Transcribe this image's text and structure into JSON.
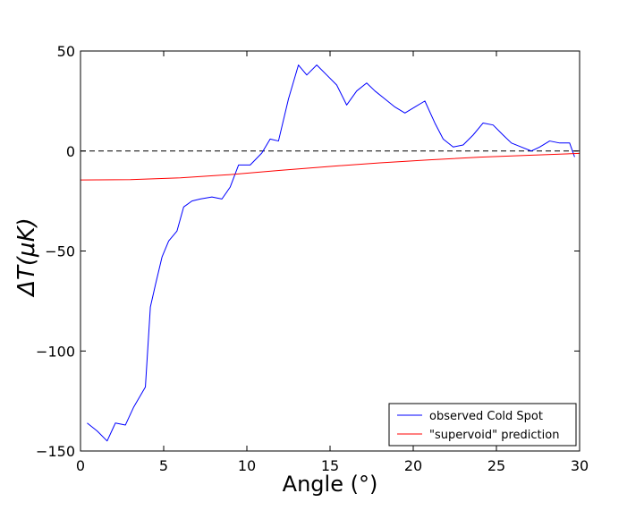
{
  "chart_data": {
    "type": "line",
    "title": "",
    "xlabel": "Angle (°)",
    "ylabel": "ΔT(μK)",
    "xlim": [
      0,
      30
    ],
    "ylim": [
      -150,
      50
    ],
    "x_ticks": [
      0,
      5,
      10,
      15,
      20,
      25,
      30
    ],
    "y_ticks": [
      -150,
      -100,
      -50,
      0,
      50
    ],
    "x_tick_labels": [
      "0",
      "5",
      "10",
      "15",
      "20",
      "25",
      "30"
    ],
    "y_tick_labels": [
      "−150",
      "−100",
      "−50",
      "0",
      "50"
    ],
    "grid": false,
    "legend_position": "bottom-right",
    "reference_line": {
      "y": 0,
      "style": "dashed",
      "color": "#000000"
    },
    "series": [
      {
        "name": "observed Cold Spot",
        "color": "#0000ff",
        "x": [
          0.4,
          1.0,
          1.6,
          2.1,
          2.7,
          3.2,
          3.9,
          4.2,
          4.5,
          4.9,
          5.3,
          5.8,
          6.2,
          6.7,
          7.2,
          7.9,
          8.5,
          9.0,
          9.5,
          10.2,
          10.9,
          11.4,
          11.9,
          12.5,
          13.1,
          13.6,
          14.2,
          14.8,
          15.4,
          16.0,
          16.6,
          17.2,
          17.7,
          18.3,
          18.9,
          19.5,
          20.1,
          20.7,
          21.3,
          21.8,
          22.4,
          23.0,
          23.6,
          24.2,
          24.8,
          25.4,
          25.9,
          26.5,
          27.1,
          27.6,
          28.2,
          28.8,
          29.4,
          29.7
        ],
        "y": [
          -136,
          -140,
          -145,
          -136,
          -137,
          -128,
          -118,
          -78,
          -67,
          -53,
          -45,
          -40,
          -28,
          -25,
          -24,
          -23,
          -24,
          -18,
          -7,
          -7,
          -1,
          6,
          5,
          26,
          43,
          38,
          43,
          38,
          33,
          23,
          30,
          34,
          30,
          26,
          22,
          19,
          22,
          25,
          14,
          6,
          2,
          3,
          8,
          14,
          13,
          8,
          4,
          2,
          0,
          2,
          5,
          4,
          4,
          -3
        ]
      },
      {
        "name": "\"supervoid\" prediction",
        "color": "#ff0000",
        "x": [
          0,
          3,
          6,
          9,
          12,
          15,
          18,
          21,
          24,
          27,
          30
        ],
        "y": [
          -14.5,
          -14.3,
          -13.4,
          -11.8,
          -9.7,
          -7.7,
          -5.9,
          -4.4,
          -3.1,
          -2.1,
          -1.2
        ]
      }
    ]
  }
}
